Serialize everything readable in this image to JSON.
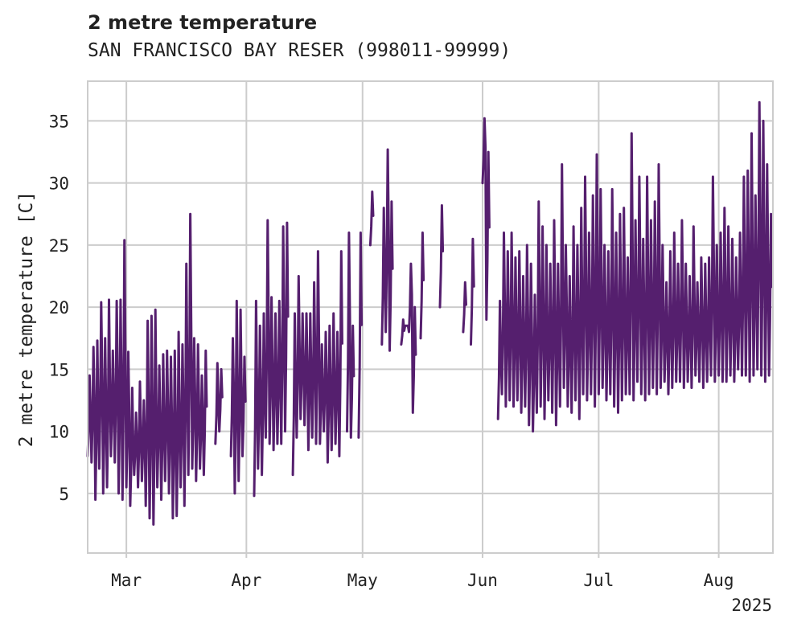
{
  "chart_data": {
    "type": "line",
    "title": "2 metre temperature",
    "subtitle": "SAN FRANCISCO BAY RESER (998011-99999)",
    "ylabel": "2 metre temperature [C]",
    "xlabel": "",
    "year_label": "2025",
    "x_range": [
      "2025-02-19",
      "2025-08-15"
    ],
    "ylim": [
      0.2,
      38.2
    ],
    "grid": true,
    "y_ticks": [
      5,
      10,
      15,
      20,
      25,
      30,
      35
    ],
    "x_ticks": [
      {
        "date": "2025-03-01",
        "label": "Mar"
      },
      {
        "date": "2025-04-01",
        "label": "Apr"
      },
      {
        "date": "2025-05-01",
        "label": "May"
      },
      {
        "date": "2025-06-01",
        "label": "Jun"
      },
      {
        "date": "2025-07-01",
        "label": "Jul"
      },
      {
        "date": "2025-08-01",
        "label": "Aug"
      }
    ],
    "line_color": "#551f6e",
    "series": [
      {
        "x": [
          "2025-02-19",
          "2025-02-20",
          "2025-02-21",
          "2025-02-22",
          "2025-02-23",
          "2025-02-24",
          "2025-02-25",
          "2025-02-26",
          "2025-02-27",
          "2025-02-28",
          "2025-03-01",
          "2025-03-02",
          "2025-03-03",
          "2025-03-04",
          "2025-03-05",
          "2025-03-06",
          "2025-03-07",
          "2025-03-08",
          "2025-03-09",
          "2025-03-10",
          "2025-03-11",
          "2025-03-12",
          "2025-03-13",
          "2025-03-14",
          "2025-03-15",
          "2025-03-16",
          "2025-03-17",
          "2025-03-18",
          "2025-03-19",
          "2025-03-20",
          "2025-03-21",
          "2025-03-22",
          "2025-03-23",
          "2025-03-24",
          "2025-03-25",
          "2025-03-26",
          "2025-03-27",
          "2025-03-28",
          "2025-03-29",
          "2025-03-30",
          "2025-03-31",
          "2025-04-01",
          "2025-04-02",
          "2025-04-03",
          "2025-04-04",
          "2025-04-05",
          "2025-04-06",
          "2025-04-07",
          "2025-04-08",
          "2025-04-09",
          "2025-04-10",
          "2025-04-11",
          "2025-04-12",
          "2025-04-13",
          "2025-04-14",
          "2025-04-15",
          "2025-04-16",
          "2025-04-17",
          "2025-04-18",
          "2025-04-19",
          "2025-04-20",
          "2025-04-21",
          "2025-04-22",
          "2025-04-23",
          "2025-04-24",
          "2025-04-25",
          "2025-04-26",
          "2025-04-27",
          "2025-04-28",
          "2025-04-29",
          "2025-04-30",
          "2025-05-01",
          "2025-05-02",
          "2025-05-03",
          "2025-05-04",
          "2025-05-05",
          "2025-05-06",
          "2025-05-07",
          "2025-05-08",
          "2025-05-09",
          "2025-05-10",
          "2025-05-11",
          "2025-05-12",
          "2025-05-13",
          "2025-05-14",
          "2025-05-15",
          "2025-05-16",
          "2025-05-17",
          "2025-05-18",
          "2025-05-19",
          "2025-05-20",
          "2025-05-21",
          "2025-05-22",
          "2025-05-23",
          "2025-05-24",
          "2025-05-25",
          "2025-05-26",
          "2025-05-27",
          "2025-05-28",
          "2025-05-29",
          "2025-05-30",
          "2025-05-31",
          "2025-06-01",
          "2025-06-02",
          "2025-06-03",
          "2025-06-04",
          "2025-06-05",
          "2025-06-06",
          "2025-06-07",
          "2025-06-08",
          "2025-06-09",
          "2025-06-10",
          "2025-06-11",
          "2025-06-12",
          "2025-06-13",
          "2025-06-14",
          "2025-06-15",
          "2025-06-16",
          "2025-06-17",
          "2025-06-18",
          "2025-06-19",
          "2025-06-20",
          "2025-06-21",
          "2025-06-22",
          "2025-06-23",
          "2025-06-24",
          "2025-06-25",
          "2025-06-26",
          "2025-06-27",
          "2025-06-28",
          "2025-06-29",
          "2025-06-30",
          "2025-07-01",
          "2025-07-02",
          "2025-07-03",
          "2025-07-04",
          "2025-07-05",
          "2025-07-06",
          "2025-07-07",
          "2025-07-08",
          "2025-07-09",
          "2025-07-10",
          "2025-07-11",
          "2025-07-12",
          "2025-07-13",
          "2025-07-14",
          "2025-07-15",
          "2025-07-16",
          "2025-07-17",
          "2025-07-18",
          "2025-07-19",
          "2025-07-20",
          "2025-07-21",
          "2025-07-22",
          "2025-07-23",
          "2025-07-24",
          "2025-07-25",
          "2025-07-26",
          "2025-07-27",
          "2025-07-28",
          "2025-07-29",
          "2025-07-30",
          "2025-07-31",
          "2025-08-01",
          "2025-08-02",
          "2025-08-03",
          "2025-08-04",
          "2025-08-05",
          "2025-08-06",
          "2025-08-07",
          "2025-08-08",
          "2025-08-09",
          "2025-08-10",
          "2025-08-11",
          "2025-08-12",
          "2025-08-13",
          "2025-08-14"
        ],
        "min": [
          8.0,
          7.5,
          4.5,
          7.0,
          5.0,
          5.5,
          8.0,
          7.5,
          5.0,
          4.5,
          5.5,
          4.0,
          6.5,
          5.5,
          6.0,
          4.0,
          3.0,
          2.5,
          5.5,
          4.5,
          6.0,
          5.0,
          3.0,
          3.2,
          5.5,
          4.0,
          6.5,
          7.0,
          6.0,
          7.0,
          6.5,
          8.0,
          8.5,
          9.0,
          10.0,
          null,
          null,
          8.0,
          5.0,
          6.0,
          8.0,
          null,
          null,
          4.8,
          7.0,
          6.5,
          9.5,
          9.0,
          8.5,
          9.0,
          9.0,
          10.0,
          11.0,
          6.5,
          9.5,
          11.0,
          10.5,
          8.5,
          9.5,
          9.0,
          9.0,
          10.0,
          7.5,
          8.5,
          9.0,
          8.0,
          null,
          10.0,
          9.5,
          null,
          9.5,
          null,
          null,
          25.0,
          null,
          null,
          17.0,
          18.0,
          16.5,
          null,
          null,
          17.0,
          18.5,
          18.0,
          11.5,
          null,
          17.5,
          null,
          null,
          null,
          null,
          20.0,
          null,
          null,
          null,
          null,
          null,
          18.0,
          null,
          17.0,
          null,
          null,
          30.0,
          19.0,
          null,
          null,
          11.0,
          13.0,
          12.0,
          12.5,
          12.0,
          12.5,
          11.5,
          12.0,
          10.5,
          10.0,
          11.5,
          12.0,
          11.0,
          12.5,
          11.5,
          10.5,
          12.0,
          13.5,
          12.0,
          11.5,
          12.5,
          11.0,
          13.0,
          12.5,
          13.0,
          12.0,
          13.0,
          13.5,
          12.5,
          13.0,
          12.0,
          11.5,
          12.5,
          13.0,
          13.0,
          12.5,
          14.0,
          13.0,
          12.5,
          13.0,
          13.5,
          13.0,
          13.5,
          14.0,
          13.0,
          13.5,
          14.0,
          14.0,
          13.5,
          14.0,
          13.5,
          14.5,
          14.0,
          13.5,
          14.0,
          14.5,
          14.0,
          14.5,
          14.0,
          14.0,
          14.5,
          14.0,
          15.0,
          14.5,
          14.5,
          14.0,
          14.5,
          15.0,
          14.5,
          14.0,
          14.5
        ],
        "max": [
          14.5,
          16.8,
          17.3,
          20.4,
          17.5,
          20.6,
          16.5,
          20.5,
          20.6,
          25.4,
          16.4,
          13.5,
          11.5,
          14.0,
          12.5,
          18.9,
          19.3,
          19.8,
          15.3,
          16.2,
          16.5,
          16.0,
          16.5,
          18.0,
          17.0,
          23.5,
          27.5,
          17.5,
          17.0,
          14.5,
          16.5,
          null,
          null,
          15.5,
          15.0,
          null,
          null,
          17.5,
          20.5,
          19.8,
          16.0,
          null,
          null,
          20.5,
          18.5,
          19.5,
          27.0,
          20.8,
          19.5,
          20.5,
          26.5,
          26.8,
          null,
          19.5,
          22.5,
          19.5,
          19.5,
          19.5,
          22.0,
          24.5,
          17.0,
          18.0,
          18.5,
          19.5,
          18.0,
          24.5,
          null,
          26.0,
          18.5,
          null,
          26.0,
          null,
          null,
          29.3,
          null,
          null,
          28.0,
          32.7,
          28.5,
          null,
          null,
          19.0,
          18.5,
          23.5,
          20.0,
          null,
          26.0,
          null,
          null,
          null,
          null,
          28.2,
          null,
          null,
          null,
          null,
          null,
          22.0,
          null,
          25.5,
          null,
          null,
          35.2,
          32.5,
          null,
          null,
          20.5,
          26.0,
          24.5,
          26.0,
          24.0,
          24.5,
          22.5,
          25.0,
          23.5,
          21.0,
          28.5,
          26.5,
          25.0,
          23.5,
          27.0,
          23.5,
          31.5,
          25.0,
          22.5,
          26.5,
          25.0,
          28.0,
          30.5,
          26.0,
          29.0,
          32.3,
          29.5,
          25.0,
          24.5,
          29.5,
          26.0,
          27.5,
          28.0,
          24.0,
          34.0,
          27.0,
          30.5,
          25.5,
          30.5,
          27.0,
          28.5,
          31.5,
          25.0,
          22.0,
          24.5,
          26.0,
          23.5,
          27.0,
          23.5,
          22.5,
          26.5,
          22.0,
          24.0,
          23.5,
          24.0,
          30.5,
          25.0,
          26.0,
          28.0,
          26.5,
          25.5,
          24.0,
          26.0,
          30.5,
          31.0,
          34.0,
          29.0,
          36.5,
          35.0,
          31.5,
          27.5
        ]
      }
    ]
  }
}
